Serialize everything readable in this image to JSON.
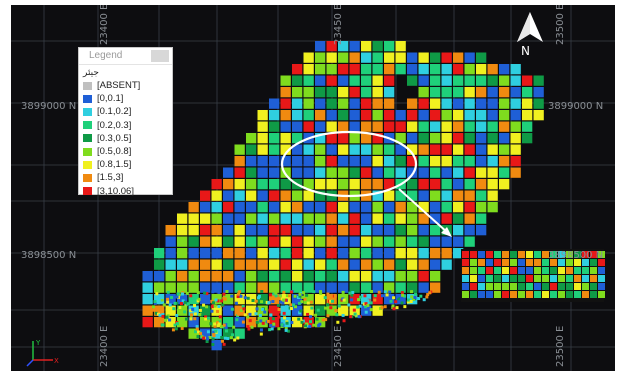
{
  "legend": {
    "title": "Legend",
    "layer_name": "جيئر",
    "items": [
      {
        "label": "[ABSENT]",
        "color": "#c0c0c0"
      },
      {
        "label": "[0,0.1]",
        "color": "#1f5fd6"
      },
      {
        "label": "[0.1,0.2]",
        "color": "#2fcfe0"
      },
      {
        "label": "[0.2,0.3]",
        "color": "#1fd07a"
      },
      {
        "label": "[0.3,0.5]",
        "color": "#0f9a46"
      },
      {
        "label": "[0.5,0.8]",
        "color": "#7fdc1e"
      },
      {
        "label": "[0.8,1.5]",
        "color": "#f0f020"
      },
      {
        "label": "[1.5,3]",
        "color": "#f08a10"
      },
      {
        "label": "[3,10.06]",
        "color": "#e81818"
      }
    ]
  },
  "north_arrow": {
    "label": "N"
  },
  "coordinates": {
    "northings": [
      "3899000 N",
      "3899000 N",
      "3898500 N",
      "3898500 N"
    ],
    "eastings_top": [
      "23400 E",
      "23450 E",
      "23500 E"
    ],
    "eastings_bottom": [
      "23400 E",
      "23450 E",
      "23500 E"
    ]
  },
  "axis_triad": {
    "x": "X",
    "y": "Y"
  },
  "colors": {
    "background": "#0d0d10",
    "grid": "#3a3f47",
    "highlight": "#ffffff"
  }
}
